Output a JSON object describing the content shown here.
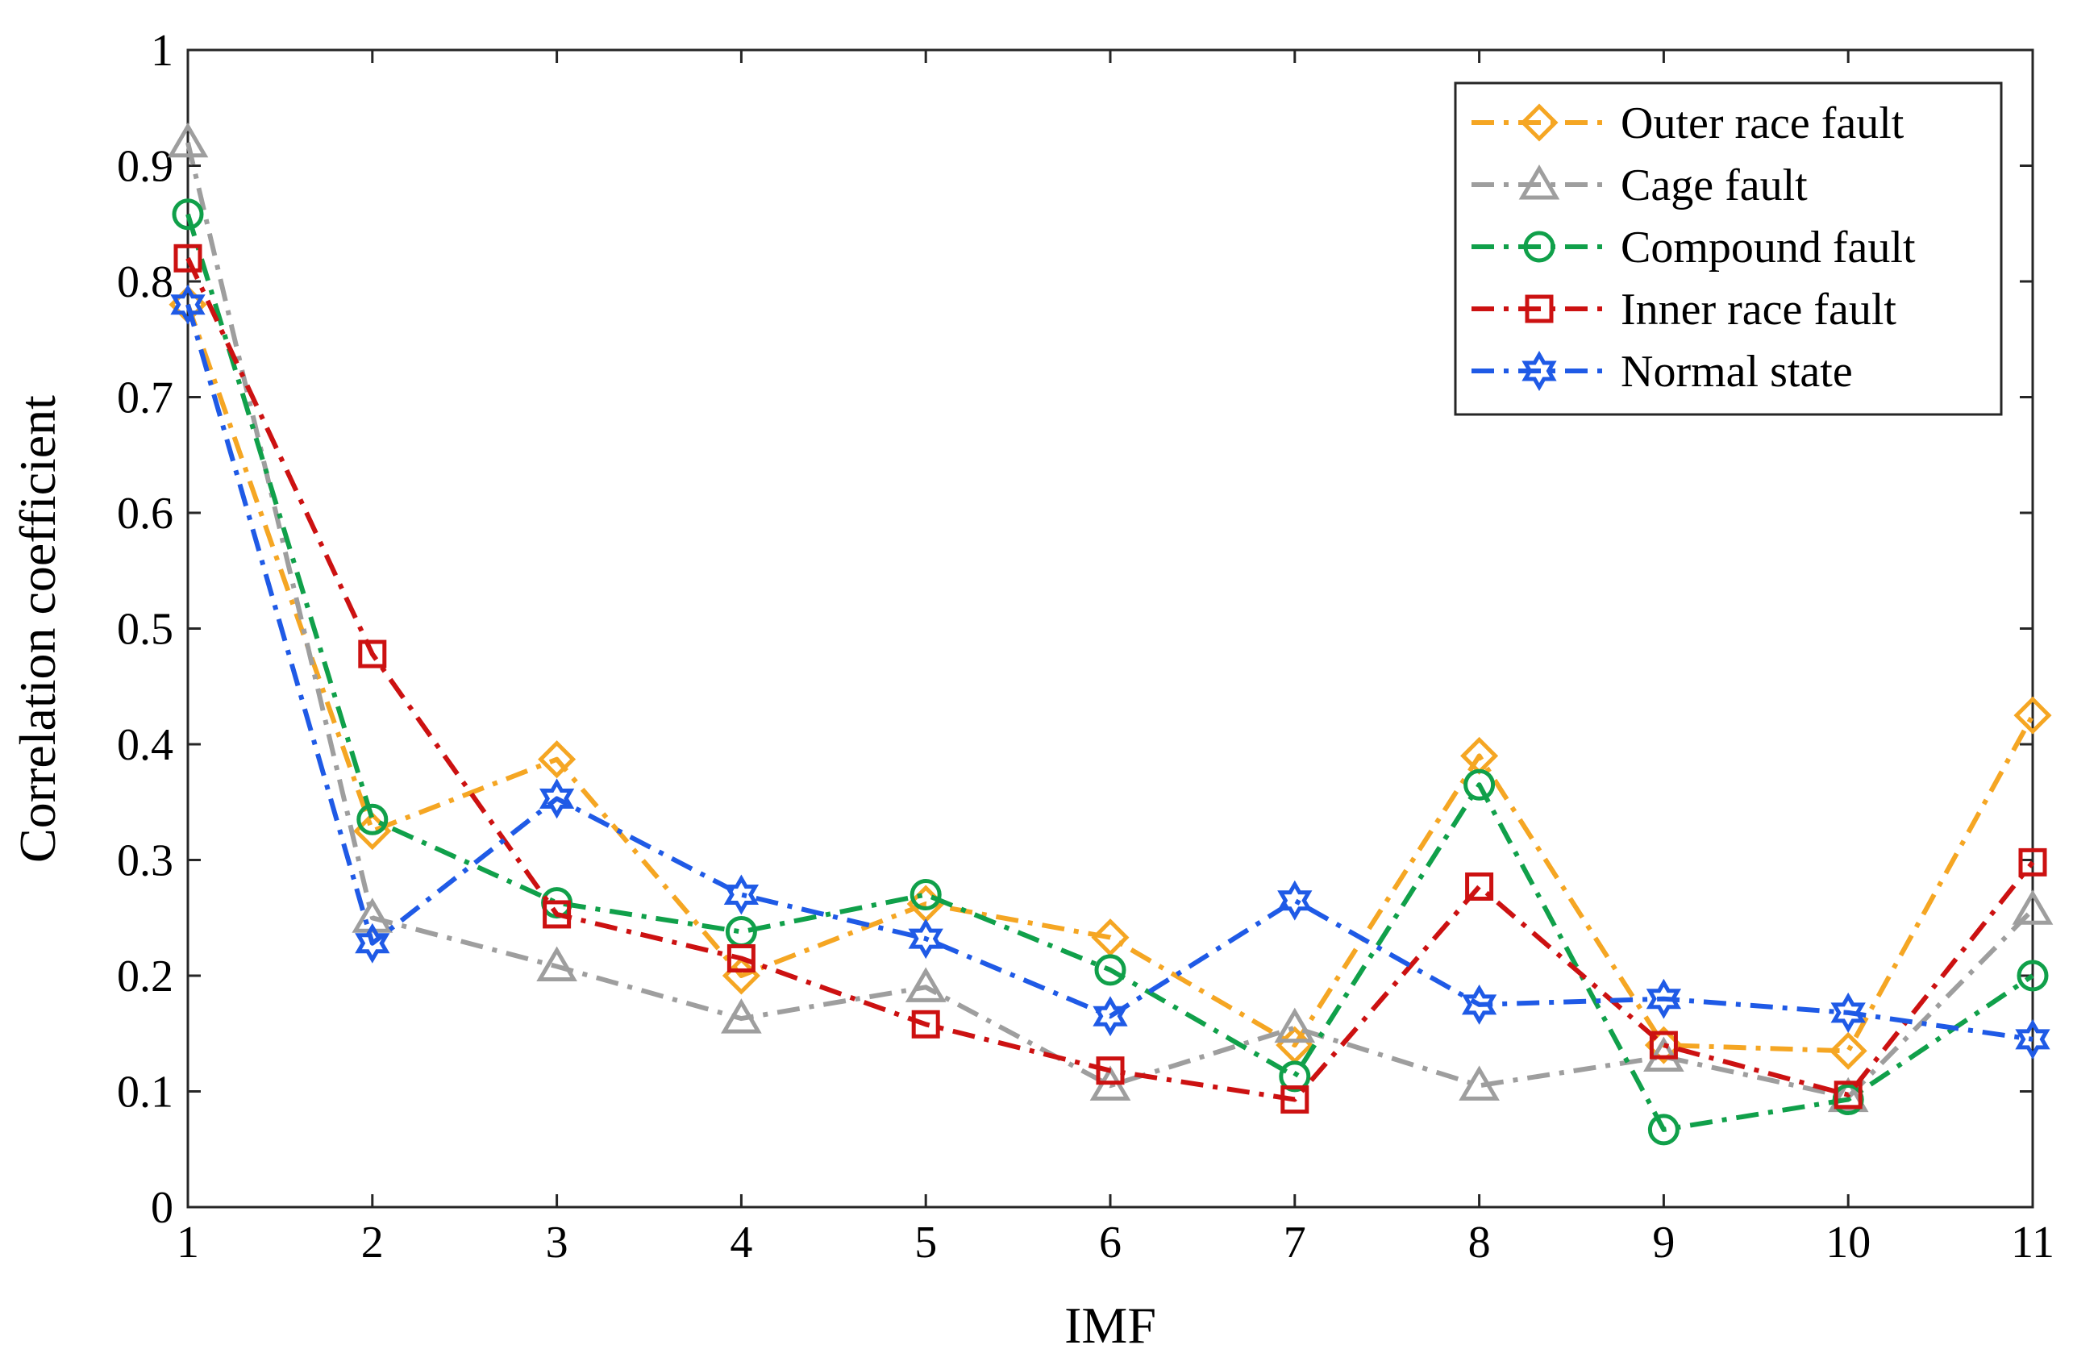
{
  "chart_data": {
    "type": "line",
    "title": "",
    "xlabel": "IMF",
    "ylabel": "Correlation coefficient",
    "x": [
      1,
      2,
      3,
      4,
      5,
      6,
      7,
      8,
      9,
      10,
      11
    ],
    "xlim": [
      1,
      11
    ],
    "ylim": [
      0,
      1
    ],
    "xticks": [
      "1",
      "2",
      "3",
      "4",
      "5",
      "6",
      "7",
      "8",
      "9",
      "10",
      "11"
    ],
    "yticks": [
      "0",
      "0.1",
      "0.2",
      "0.3",
      "0.4",
      "0.5",
      "0.6",
      "0.7",
      "0.8",
      "0.9",
      "1"
    ],
    "grid": false,
    "legend_position": "top-right",
    "series": [
      {
        "name": "Outer race fault",
        "color": "#F5A623",
        "marker": "diamond",
        "values": [
          0.78,
          0.325,
          0.387,
          0.2,
          0.262,
          0.233,
          0.14,
          0.39,
          0.14,
          0.135,
          0.425
        ]
      },
      {
        "name": "Cage fault",
        "color": "#9E9E9E",
        "marker": "triangle",
        "values": [
          0.92,
          0.25,
          0.208,
          0.163,
          0.19,
          0.105,
          0.155,
          0.105,
          0.13,
          0.095,
          0.257
        ]
      },
      {
        "name": "Compound fault",
        "color": "#10A04A",
        "marker": "circle",
        "values": [
          0.858,
          0.335,
          0.263,
          0.238,
          0.27,
          0.205,
          0.113,
          0.365,
          0.067,
          0.093,
          0.2
        ]
      },
      {
        "name": "Inner race fault",
        "color": "#CC1111",
        "marker": "square",
        "values": [
          0.82,
          0.478,
          0.253,
          0.215,
          0.158,
          0.118,
          0.093,
          0.277,
          0.14,
          0.097,
          0.298
        ]
      },
      {
        "name": "Normal state",
        "color": "#1F5AE6",
        "marker": "hexagram",
        "values": [
          0.78,
          0.228,
          0.353,
          0.27,
          0.232,
          0.165,
          0.265,
          0.175,
          0.18,
          0.168,
          0.145
        ]
      }
    ]
  }
}
